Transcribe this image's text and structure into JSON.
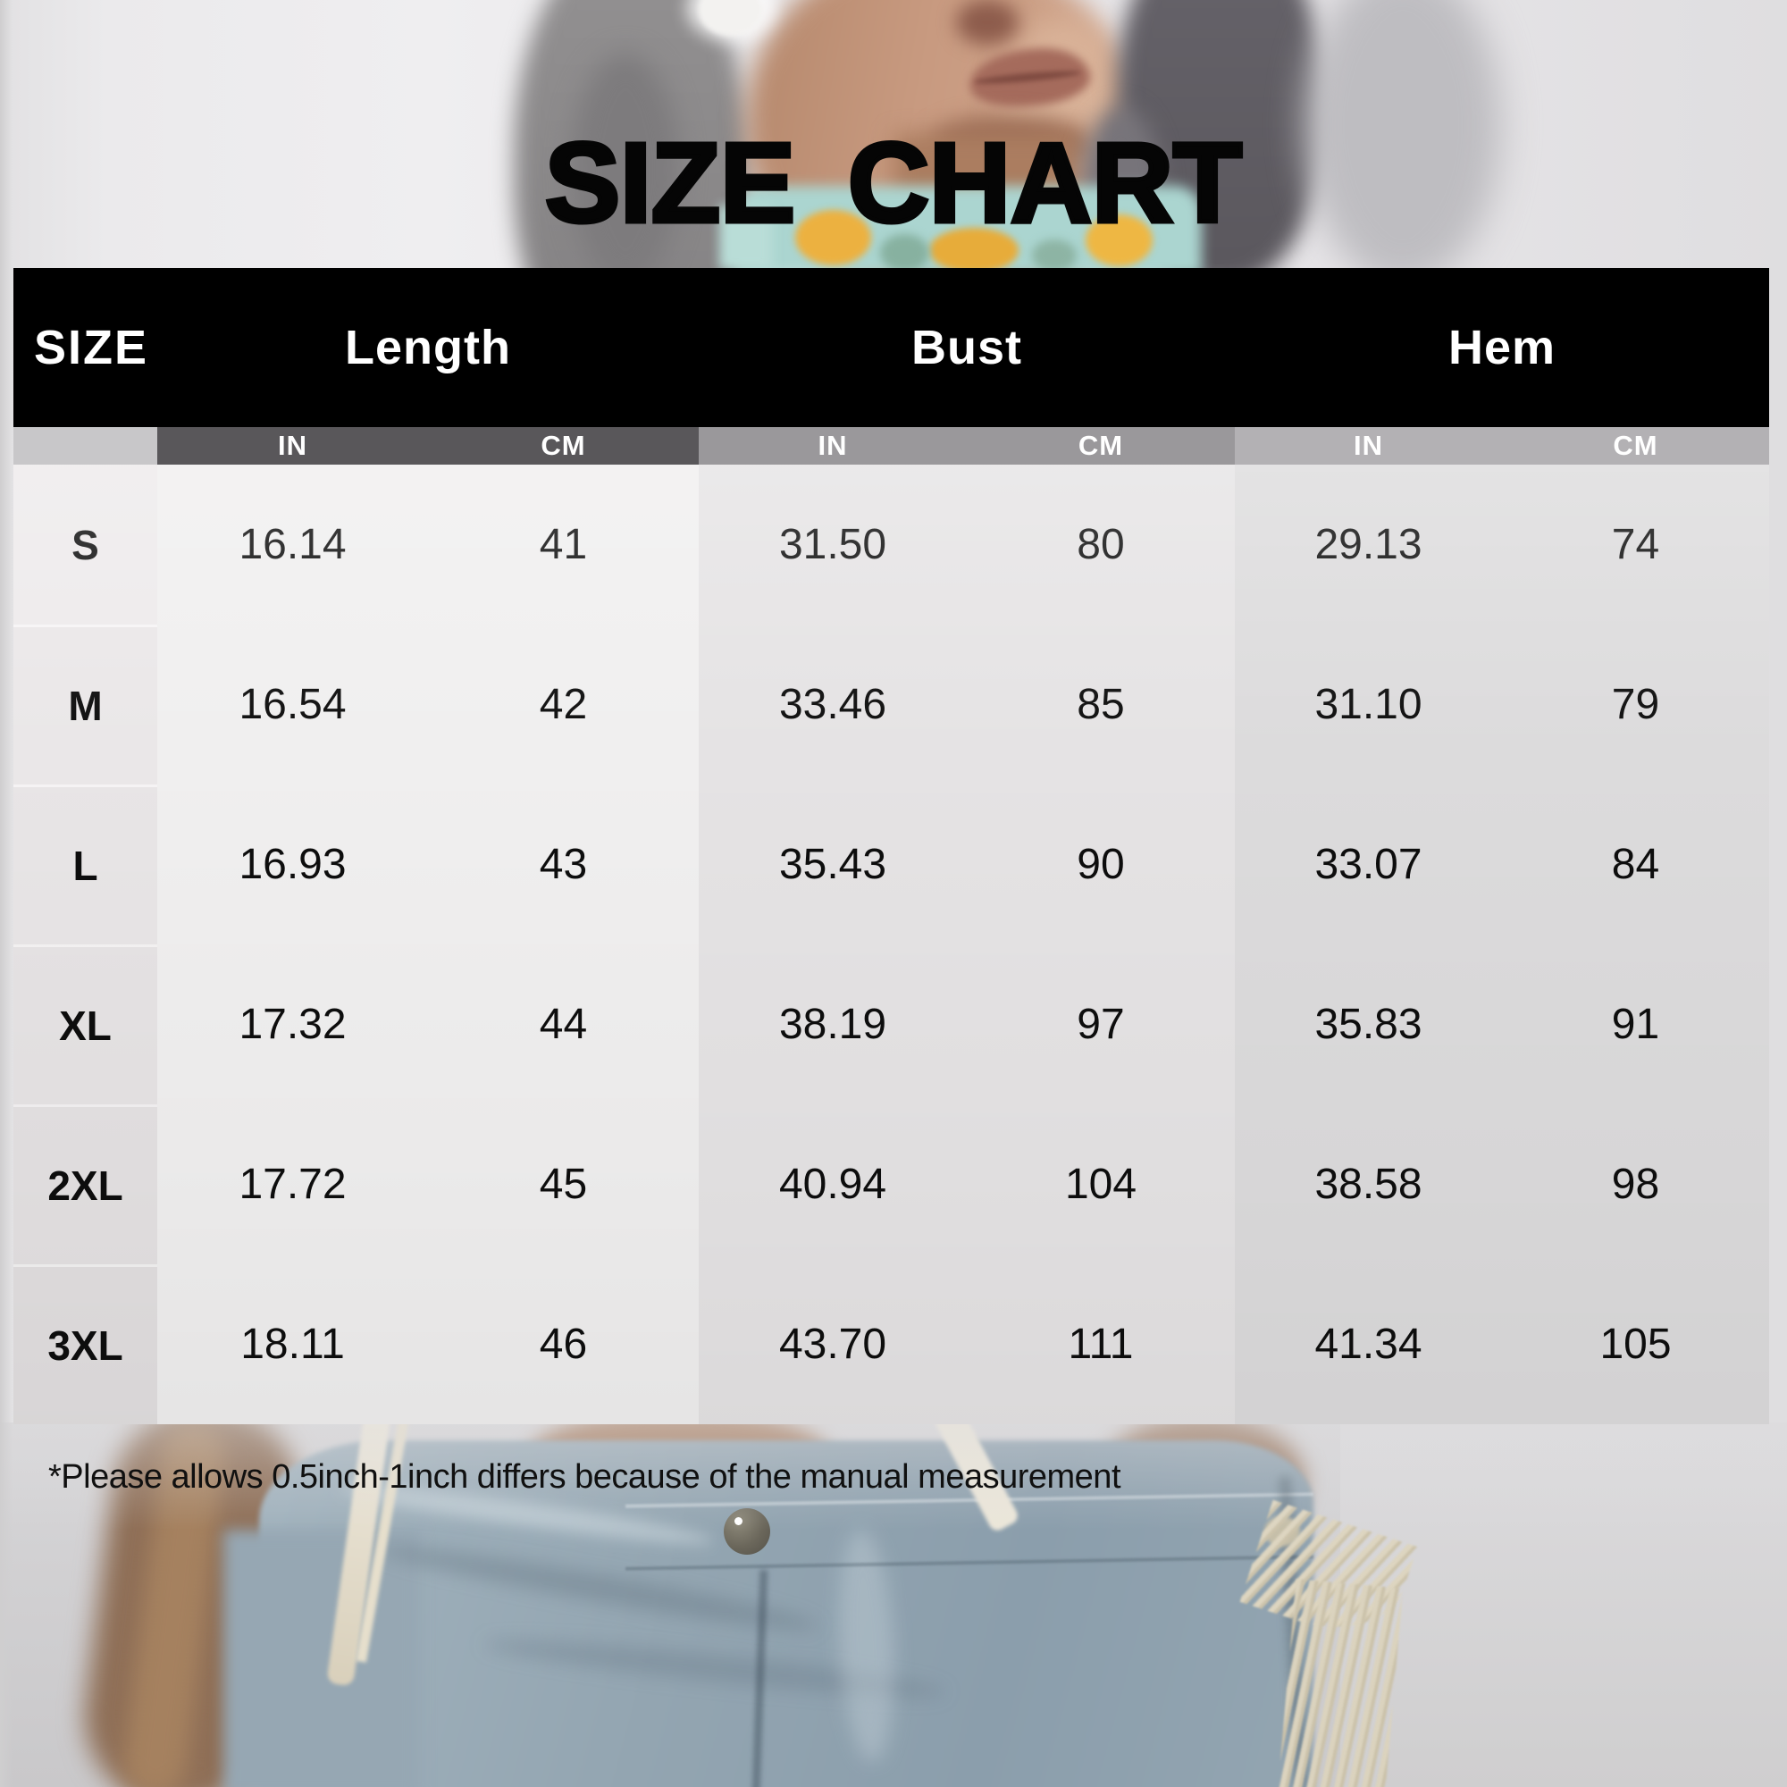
{
  "title": "SIZE CHART",
  "table": {
    "size_header": "SIZE",
    "groups": [
      "Length",
      "Bust",
      "Hem"
    ],
    "unit_in": "IN",
    "unit_cm": "CM",
    "rows": [
      {
        "size": "S",
        "values": [
          "16.14",
          "41",
          "31.50",
          "80",
          "29.13",
          "74"
        ]
      },
      {
        "size": "M",
        "values": [
          "16.54",
          "42",
          "33.46",
          "85",
          "31.10",
          "79"
        ]
      },
      {
        "size": "L",
        "values": [
          "16.93",
          "43",
          "35.43",
          "90",
          "33.07",
          "84"
        ]
      },
      {
        "size": "XL",
        "values": [
          "17.32",
          "44",
          "38.19",
          "97",
          "35.83",
          "91"
        ]
      },
      {
        "size": "2XL",
        "values": [
          "17.72",
          "45",
          "40.94",
          "104",
          "38.58",
          "98"
        ]
      },
      {
        "size": "3XL",
        "values": [
          "18.11",
          "46",
          "43.70",
          "111",
          "41.34",
          "105"
        ]
      }
    ]
  },
  "footnote": "*Please allows 0.5inch-1inch differs because of the manual measurement",
  "colors": {
    "header_bg": "#000000",
    "header_text": "#ffffff",
    "subheader_size": "#c8c7c9",
    "subheader_length": "#59575a",
    "subheader_bust": "#9a989b",
    "subheader_hem": "#b3b1b4",
    "col_size": "#eae7e8",
    "col_length": "#f0efef",
    "col_bust": "#e5e3e4",
    "col_hem": "#dcdbdc",
    "body_text": "#0d0d0d"
  }
}
